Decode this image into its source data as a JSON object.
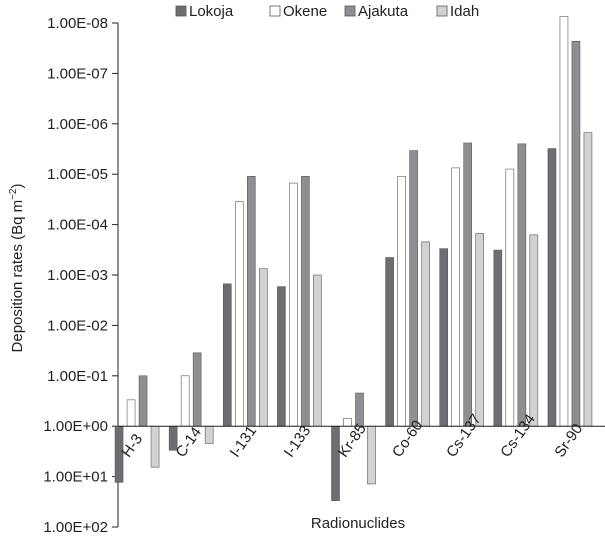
{
  "chart_data": {
    "type": "bar",
    "title": "",
    "xlabel": "Radionuclides",
    "ylabel": "Deposition rates (Bq m",
    "ylabel_sup": "−2",
    "ylabel_close": ")",
    "y_scale": "log",
    "y_axis_inverted": true,
    "ylim": [
      1e-08,
      100
    ],
    "baseline": 1,
    "yticks": [
      1e-08,
      1e-07,
      1e-06,
      1e-05,
      0.0001,
      0.001,
      0.01,
      0.1,
      1,
      10,
      100
    ],
    "ytick_labels": [
      "1.00E-08",
      "1.00E-07",
      "1.00E-06",
      "1.00E-05",
      "1.00E-04",
      "1.00E-03",
      "1.00E-02",
      "1.00E-01",
      "1.00E+00",
      "1.00E+01",
      "1.00E+02"
    ],
    "categories": [
      "H-3",
      "C-14",
      "I-131",
      "I-133",
      "Kr-85",
      "Co-60",
      "Cs-137",
      "Cs-134",
      "Sr-90"
    ],
    "series": [
      {
        "name": "Lokoja",
        "color": "#6d6e71",
        "values": [
          13,
          3,
          0.0015,
          0.0017,
          30,
          0.00045,
          0.0003,
          0.00032,
          3.1e-06
        ]
      },
      {
        "name": "Okene",
        "color": "#ffffff",
        "values": [
          0.3,
          0.1,
          3.5e-05,
          1.5e-05,
          0.7,
          1.1e-05,
          7.5e-06,
          7.9e-06,
          7.5e-09
        ]
      },
      {
        "name": "Ajakuta",
        "color": "#8e8f92",
        "values": [
          0.1,
          0.035,
          1.1e-05,
          1.1e-05,
          0.22,
          3.4e-06,
          2.4e-06,
          2.5e-06,
          2.3e-08
        ]
      },
      {
        "name": "Idah",
        "color": "#d1d2d4",
        "values": [
          6.5,
          2.2,
          0.00075,
          0.001,
          14,
          0.00022,
          0.00015,
          0.00016,
          1.5e-06
        ]
      }
    ],
    "legend_position": "top",
    "grid": false
  }
}
